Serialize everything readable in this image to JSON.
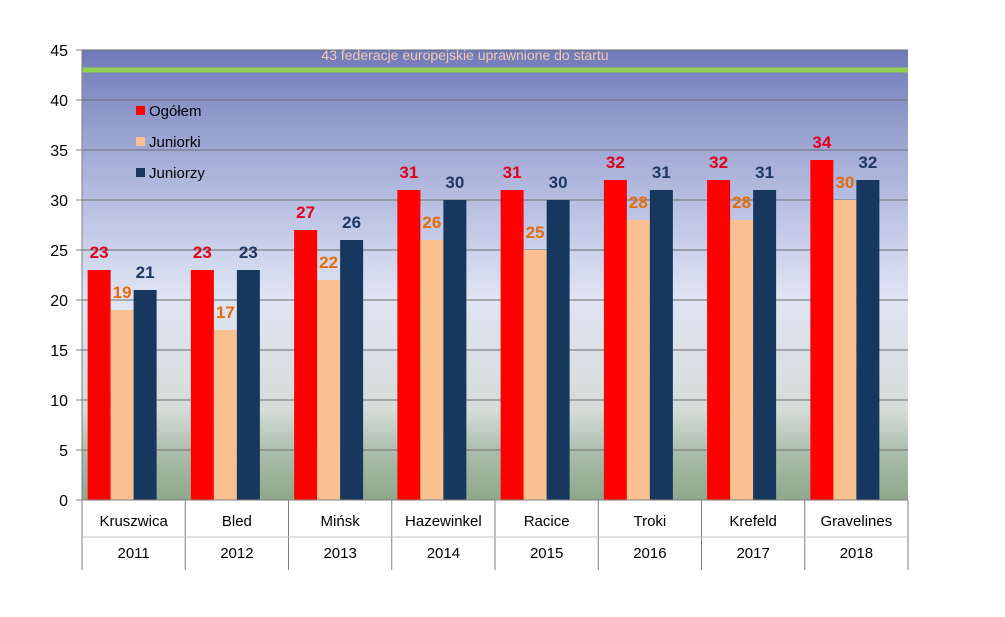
{
  "chart_data": {
    "type": "bar",
    "categories": [
      {
        "place": "Kruszwica",
        "year": "2011"
      },
      {
        "place": "Bled",
        "year": "2012"
      },
      {
        "place": "Mińsk",
        "year": "2013"
      },
      {
        "place": "Hazewinkel",
        "year": "2014"
      },
      {
        "place": "Racice",
        "year": "2015"
      },
      {
        "place": "Troki",
        "year": "2016"
      },
      {
        "place": "Krefeld",
        "year": "2017"
      },
      {
        "place": "Gravelines",
        "year": "2018"
      }
    ],
    "series": [
      {
        "name": "Ogółem",
        "color": "#ff0000",
        "label_color": "#e3001b",
        "values": [
          23,
          23,
          27,
          31,
          31,
          32,
          32,
          34
        ]
      },
      {
        "name": "Juniorki",
        "color": "#fac090",
        "label_color": "#e46c0a",
        "values": [
          19,
          17,
          22,
          26,
          25,
          28,
          28,
          30
        ]
      },
      {
        "name": "Juniorzy",
        "color": "#17375e",
        "label_color": "#1f3864",
        "values": [
          21,
          23,
          26,
          30,
          30,
          31,
          31,
          32
        ]
      }
    ],
    "ylim": [
      0,
      45
    ],
    "yticks": [
      0,
      5,
      10,
      15,
      20,
      25,
      30,
      35,
      40,
      45
    ],
    "reference_line": {
      "value": 43,
      "label": "43 federacje europejskie uprawnione do startu",
      "color": "#92d050"
    },
    "legend": "top-left, inside plot",
    "grid": true,
    "title": "",
    "xlabel": "",
    "ylabel": ""
  }
}
